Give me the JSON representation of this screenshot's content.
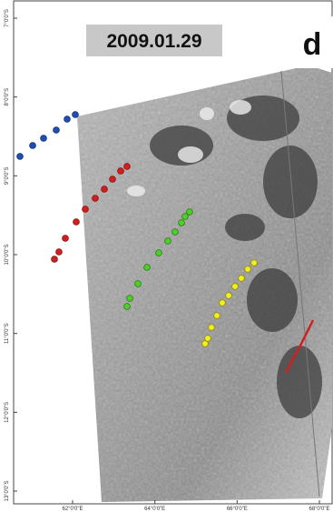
{
  "date_label": "2009.01.29",
  "panel_label": "d",
  "axes": {
    "latitude_labels": [
      "7°0'0\"S",
      "8°0'0\"S",
      "9°0'0\"S",
      "10°0'0\"S",
      "11°0'0\"S",
      "12°0'0\"S",
      "13°0'0\"S"
    ],
    "longitude_labels": [
      "62°0'0\"E",
      "64°0'0\"E",
      "66°0'0\"E",
      "68°0'0\"E"
    ]
  }
}
